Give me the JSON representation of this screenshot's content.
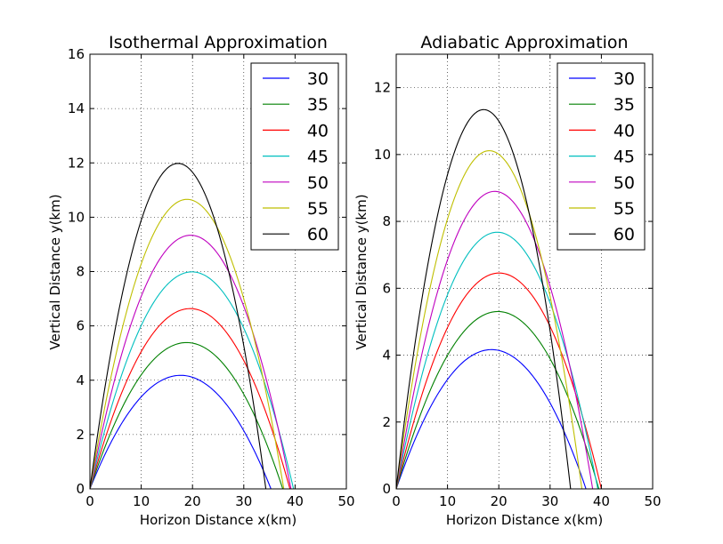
{
  "chart_data": [
    {
      "type": "line",
      "title": "Isothermal Approximation",
      "xlabel": "Horizon Distance x(km)",
      "ylabel": "Vertical Distance y(km)",
      "xlim": [
        0,
        50
      ],
      "ylim": [
        0,
        16
      ],
      "xticks": [
        0,
        10,
        20,
        30,
        40,
        50
      ],
      "yticks": [
        0,
        2,
        4,
        6,
        8,
        10,
        12,
        14,
        16
      ],
      "grid": true,
      "legend_position": "top-right",
      "series": [
        {
          "name": "30",
          "color": "#0000ff",
          "peak_x": 16.2,
          "peak_y": 4.15,
          "range_x": 35.3
        },
        {
          "name": "35",
          "color": "#008000",
          "peak_x": 17.3,
          "peak_y": 5.35,
          "range_x": 37.6
        },
        {
          "name": "40",
          "color": "#ff0000",
          "peak_x": 18.1,
          "peak_y": 6.6,
          "range_x": 39.0
        },
        {
          "name": "45",
          "color": "#00bfbf",
          "peak_x": 18.5,
          "peak_y": 7.95,
          "range_x": 39.7
        },
        {
          "name": "50",
          "color": "#bf00bf",
          "peak_x": 18.4,
          "peak_y": 9.3,
          "range_x": 39.2
        },
        {
          "name": "55",
          "color": "#bfbf00",
          "peak_x": 17.8,
          "peak_y": 10.62,
          "range_x": 37.8
        },
        {
          "name": "60",
          "color": "#000000",
          "peak_x": 16.3,
          "peak_y": 11.95,
          "range_x": 34.3
        }
      ]
    },
    {
      "type": "line",
      "title": "Adiabatic Approximation",
      "xlabel": "Horizon Distance x(km)",
      "ylabel": "Vertical Distance y(km)",
      "xlim": [
        0,
        50
      ],
      "ylim": [
        0,
        13
      ],
      "xticks": [
        0,
        10,
        20,
        30,
        40,
        50
      ],
      "yticks": [
        0,
        2,
        4,
        6,
        8,
        10,
        12
      ],
      "grid": true,
      "legend_position": "top-right",
      "series": [
        {
          "name": "30",
          "color": "#0000ff",
          "peak_x": 15.5,
          "peak_y": 4.05,
          "range_x": 37.0
        },
        {
          "name": "35",
          "color": "#008000",
          "peak_x": 16.8,
          "peak_y": 5.18,
          "range_x": 39.5
        },
        {
          "name": "40",
          "color": "#ff0000",
          "peak_x": 17.5,
          "peak_y": 6.35,
          "range_x": 40.0
        },
        {
          "name": "45",
          "color": "#00bfbf",
          "peak_x": 17.5,
          "peak_y": 7.58,
          "range_x": 39.3
        },
        {
          "name": "50",
          "color": "#bf00bf",
          "peak_x": 17.4,
          "peak_y": 8.82,
          "range_x": 38.3
        },
        {
          "name": "55",
          "color": "#bfbf00",
          "peak_x": 16.7,
          "peak_y": 10.05,
          "range_x": 36.2
        },
        {
          "name": "60",
          "color": "#000000",
          "peak_x": 15.5,
          "peak_y": 11.25,
          "range_x": 34.0
        }
      ]
    }
  ]
}
